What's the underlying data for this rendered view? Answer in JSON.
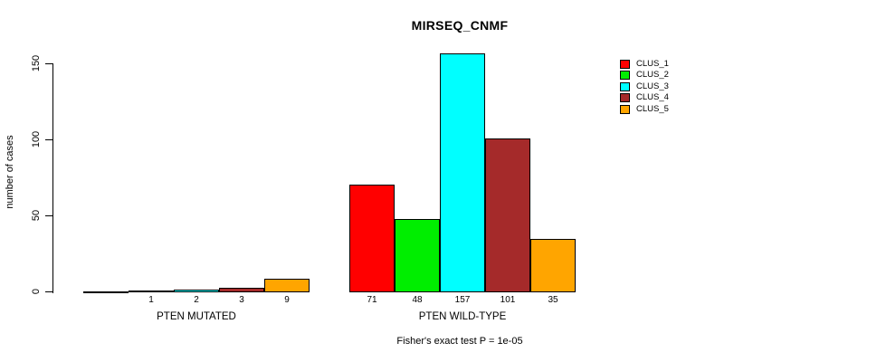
{
  "chart_data": {
    "type": "bar",
    "title": "MIRSEQ_CNMF",
    "xlabel": "",
    "ylabel": "number of cases",
    "ylim": [
      0,
      160
    ],
    "yticks": [
      0,
      50,
      100,
      150
    ],
    "ytick_labels": [
      "0",
      "50",
      "100",
      "150"
    ],
    "grid": false,
    "legend_position": "right",
    "annotation": "Fisher's exact test P = 1e-05",
    "categories": [
      "PTEN MUTATED",
      "PTEN WILD-TYPE"
    ],
    "series": [
      {
        "name": "CLUS_1",
        "color": "#FF0000",
        "values": [
          0,
          71
        ]
      },
      {
        "name": "CLUS_2",
        "color": "#00EE00",
        "values": [
          1,
          48
        ]
      },
      {
        "name": "CLUS_3",
        "color": "#00FFFF",
        "values": [
          2,
          157
        ]
      },
      {
        "name": "CLUS_4",
        "color": "#A52A2A",
        "values": [
          3,
          101
        ]
      },
      {
        "name": "CLUS_5",
        "color": "#FFA500",
        "values": [
          9,
          35
        ]
      }
    ],
    "bar_value_labels": [
      [
        "",
        "1",
        "2",
        "3",
        "9"
      ],
      [
        "71",
        "48",
        "157",
        "101",
        "35"
      ]
    ]
  }
}
